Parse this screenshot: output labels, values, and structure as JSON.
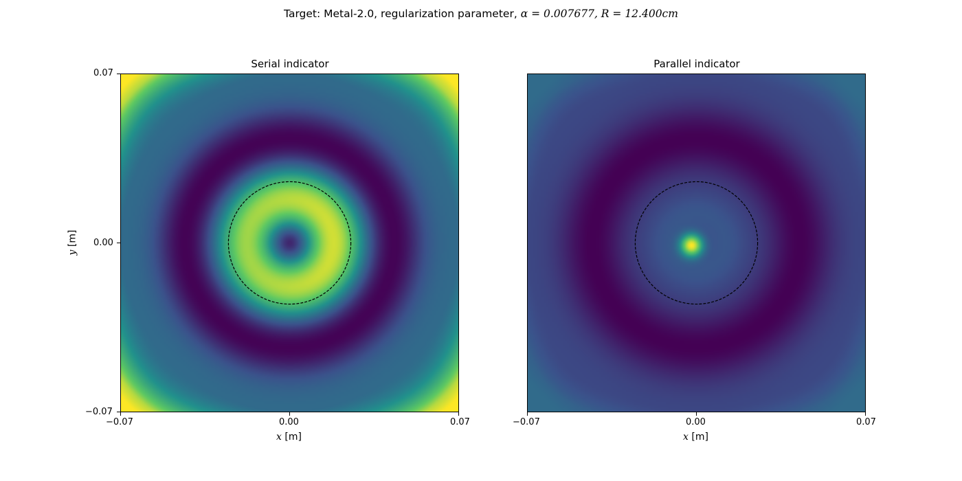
{
  "figure": {
    "suptitle_prefix": "Target: Metal-2.0, regularization parameter, ",
    "suptitle_math": "α = 0.007677, R = 12.400cm"
  },
  "colormap": {
    "name": "viridis",
    "stops": [
      "#440154",
      "#3b528b",
      "#21918c",
      "#5ec962",
      "#fde725"
    ]
  },
  "chart_data": [
    {
      "type": "heatmap",
      "title": "Serial indicator",
      "xlabel_var": "x",
      "xlabel_unit": " [m]",
      "ylabel_var": "y",
      "ylabel_unit": " [m]",
      "xlim": [
        -0.07,
        0.07
      ],
      "ylim": [
        -0.07,
        0.07
      ],
      "xticks": [
        "−0.07",
        "0.00",
        "0.07"
      ],
      "yticks": [
        "−0.07",
        "0.00",
        "0.07"
      ],
      "grid": false,
      "overlay_circle": {
        "center": [
          0.0,
          0.0
        ],
        "radius": 0.0254,
        "style": "dashed",
        "color": "#000000"
      },
      "features": {
        "center_value": 0.05,
        "inner_ring_radius": 0.018,
        "inner_ring_value": 0.9,
        "dark_ring_radius": 0.043,
        "dark_ring_value": 0.0,
        "background_value": 0.35,
        "corner_value": 0.95
      }
    },
    {
      "type": "heatmap",
      "title": "Parallel indicator",
      "xlabel_var": "x",
      "xlabel_unit": " [m]",
      "xlim": [
        -0.07,
        0.07
      ],
      "ylim": [
        -0.07,
        0.07
      ],
      "xticks": [
        "−0.07",
        "0.00",
        "0.07"
      ],
      "grid": false,
      "overlay_circle": {
        "center": [
          0.0,
          0.0
        ],
        "radius": 0.0254,
        "style": "dashed",
        "color": "#000000"
      },
      "features": {
        "peak_center": [
          -0.002,
          -0.001
        ],
        "peak_value": 1.0,
        "inner_value": 0.2,
        "dark_ring_radius": 0.043,
        "dark_ring_value": 0.0,
        "background_value": 0.22,
        "corner_value": 0.35
      }
    }
  ]
}
